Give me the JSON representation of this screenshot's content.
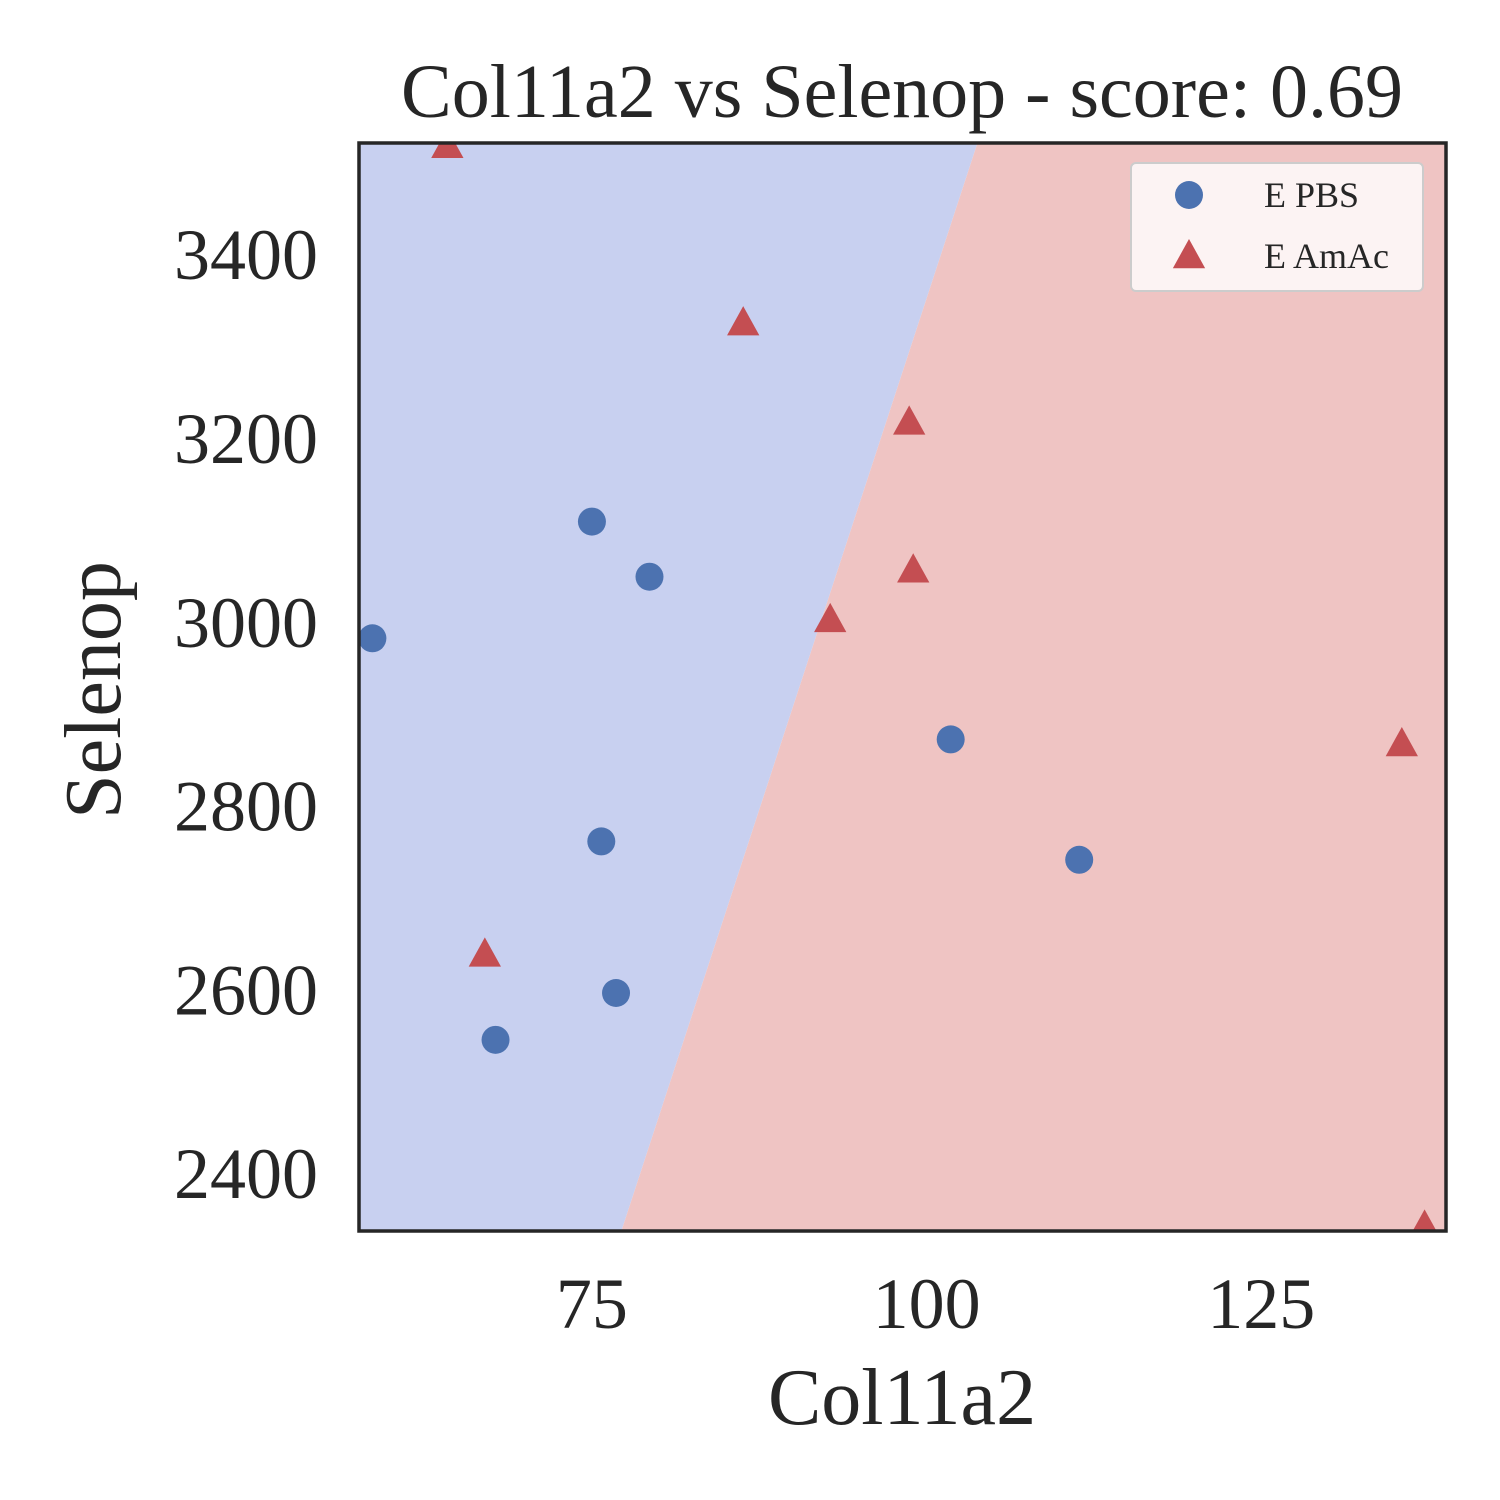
{
  "chart_data": {
    "type": "scatter",
    "title": "Col11a2 vs Selenop - score: 0.69",
    "xlabel": "Col11a2",
    "ylabel": "Selenop",
    "xlim": [
      57.6,
      138.8
    ],
    "ylim": [
      2337,
      3521
    ],
    "xticks": [
      75,
      100,
      125
    ],
    "yticks": [
      2400,
      2600,
      2800,
      3000,
      3200,
      3400
    ],
    "grid": false,
    "legend_position": "top-right",
    "decision_boundary": {
      "x_at_bottom": 77.2,
      "x_at_top": 103.8,
      "left_region_color": "#c8d0f0",
      "right_region_color": "#efc4c3"
    },
    "series": [
      {
        "name": "E PBS",
        "marker": "circle",
        "color": "#4c72b0",
        "points": [
          {
            "x": 58.6,
            "y": 2982
          },
          {
            "x": 75.0,
            "y": 3109
          },
          {
            "x": 79.3,
            "y": 3049
          },
          {
            "x": 75.7,
            "y": 2761
          },
          {
            "x": 76.8,
            "y": 2596
          },
          {
            "x": 67.8,
            "y": 2545
          },
          {
            "x": 101.8,
            "y": 2872
          },
          {
            "x": 111.4,
            "y": 2741
          }
        ]
      },
      {
        "name": "E AmAc",
        "marker": "triangle",
        "color": "#c44e52",
        "points": [
          {
            "x": 64.2,
            "y": 3518
          },
          {
            "x": 86.3,
            "y": 3325
          },
          {
            "x": 98.7,
            "y": 3217
          },
          {
            "x": 99.0,
            "y": 3056
          },
          {
            "x": 92.8,
            "y": 3002
          },
          {
            "x": 67.0,
            "y": 2638
          },
          {
            "x": 135.5,
            "y": 2867
          },
          {
            "x": 137.2,
            "y": 2342
          }
        ]
      }
    ]
  }
}
